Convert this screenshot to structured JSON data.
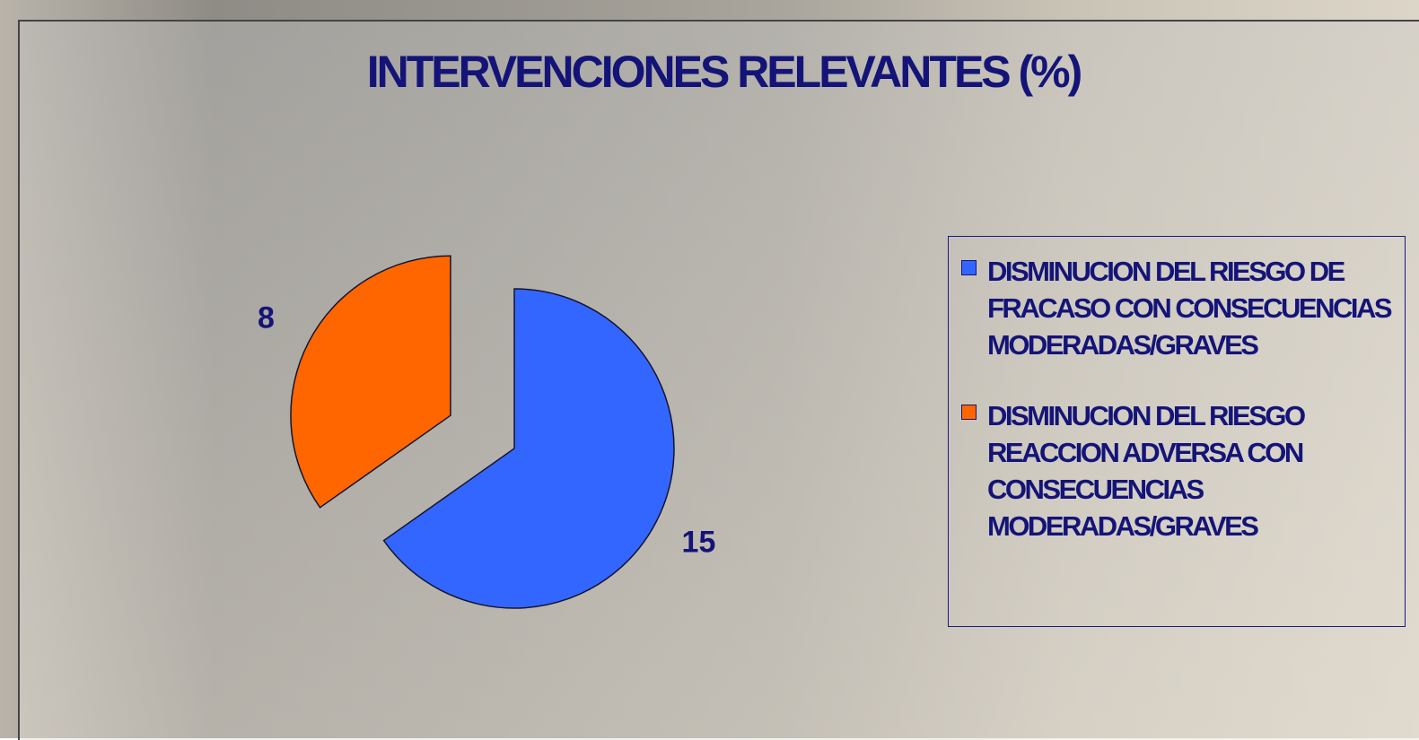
{
  "chart_data": {
    "type": "pie",
    "title": "INTERVENCIONES RELEVANTES (%)",
    "categories": [
      "DISMINUCION DEL RIESGO DE FRACASO CON CONSECUENCIAS MODERADAS/GRAVES",
      "DISMINUCION DEL RIESGO REACCION ADVERSA CON CONSECUENCIAS MODERADAS/GRAVES"
    ],
    "values": [
      15,
      8
    ],
    "colors": [
      "#3366ff",
      "#ff6600"
    ]
  }
}
